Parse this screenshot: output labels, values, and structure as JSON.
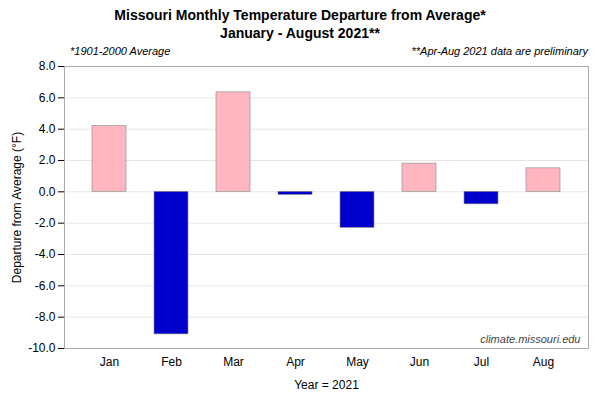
{
  "chart_data": {
    "type": "bar",
    "title": "Missouri Monthly Temperature Departure from Average*",
    "subtitle": "January - August 2021**",
    "xlabel": "Year = 2021",
    "ylabel": "Departure from Average (°F)",
    "categories": [
      "Jan",
      "Feb",
      "Mar",
      "Apr",
      "May",
      "Jun",
      "Jul",
      "Aug"
    ],
    "values": [
      4.2,
      -9.1,
      6.35,
      -0.2,
      -2.3,
      1.8,
      -0.8,
      1.5
    ],
    "colors": [
      "#FFB6C1",
      "#0000CD",
      "#FFB6C1",
      "#0000CD",
      "#0000CD",
      "#FFB6C1",
      "#0000CD",
      "#FFB6C1"
    ],
    "ylim": [
      -10.0,
      8.0
    ],
    "yticks": [
      {
        "value": -10.0,
        "label": "-10.0"
      },
      {
        "value": -8.0,
        "label": "-8.0"
      },
      {
        "value": -6.0,
        "label": "-6.0"
      },
      {
        "value": -4.0,
        "label": "-4.0"
      },
      {
        "value": -2.0,
        "label": "-2.0"
      },
      {
        "value": 0.0,
        "label": "0.0"
      },
      {
        "value": 2.0,
        "label": "2.0"
      },
      {
        "value": 4.0,
        "label": "4.0"
      },
      {
        "value": 6.0,
        "label": "6.0"
      },
      {
        "value": 8.0,
        "label": "8.0"
      }
    ],
    "grid": true,
    "annotations": [
      "*1901-2000 Average",
      "**Apr-Aug 2021 data are preliminary",
      "climate.missouri.edu"
    ]
  }
}
